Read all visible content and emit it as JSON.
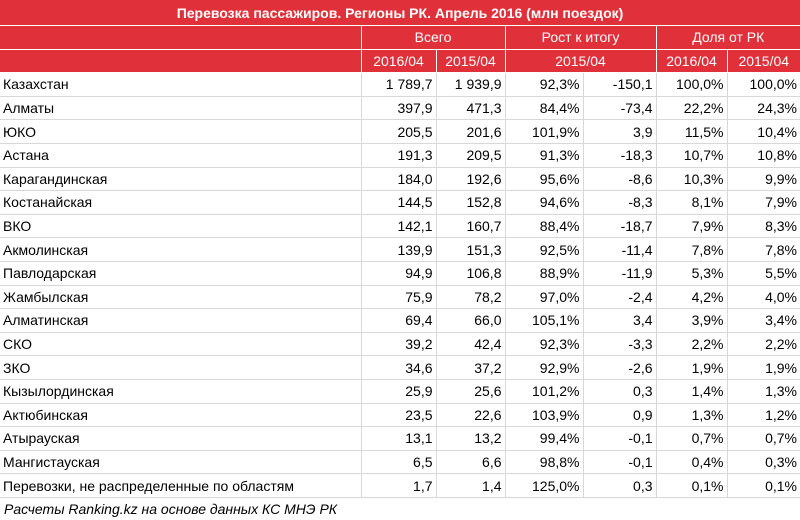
{
  "title": "Перевозка пассажиров. Регионы РК. Апрель 2016 (млн поездок)",
  "header": {
    "group_total": "Всего",
    "group_growth": "Рост к итогу",
    "group_share": "Доля от РК",
    "total_2016": "2016/04",
    "total_2015": "2015/04",
    "growth_period": "2015/04",
    "share_2016": "2016/04",
    "share_2015": "2015/04"
  },
  "rows": [
    {
      "region": "Казахстан",
      "v2016": "1 789,7",
      "v2015": "1 939,9",
      "growth_pct": "92,3%",
      "growth_abs": "-150,1",
      "share2016": "100,0%",
      "share2015": "100,0%"
    },
    {
      "region": "Алматы",
      "v2016": "397,9",
      "v2015": "471,3",
      "growth_pct": "84,4%",
      "growth_abs": "-73,4",
      "share2016": "22,2%",
      "share2015": "24,3%"
    },
    {
      "region": "ЮКО",
      "v2016": "205,5",
      "v2015": "201,6",
      "growth_pct": "101,9%",
      "growth_abs": "3,9",
      "share2016": "11,5%",
      "share2015": "10,4%"
    },
    {
      "region": "Астана",
      "v2016": "191,3",
      "v2015": "209,5",
      "growth_pct": "91,3%",
      "growth_abs": "-18,3",
      "share2016": "10,7%",
      "share2015": "10,8%"
    },
    {
      "region": "Карагандинская",
      "v2016": "184,0",
      "v2015": "192,6",
      "growth_pct": "95,6%",
      "growth_abs": "-8,6",
      "share2016": "10,3%",
      "share2015": "9,9%"
    },
    {
      "region": "Костанайская",
      "v2016": "144,5",
      "v2015": "152,8",
      "growth_pct": "94,6%",
      "growth_abs": "-8,3",
      "share2016": "8,1%",
      "share2015": "7,9%"
    },
    {
      "region": "ВКО",
      "v2016": "142,1",
      "v2015": "160,7",
      "growth_pct": "88,4%",
      "growth_abs": "-18,7",
      "share2016": "7,9%",
      "share2015": "8,3%"
    },
    {
      "region": "Акмолинская",
      "v2016": "139,9",
      "v2015": "151,3",
      "growth_pct": "92,5%",
      "growth_abs": "-11,4",
      "share2016": "7,8%",
      "share2015": "7,8%"
    },
    {
      "region": "Павлодарская",
      "v2016": "94,9",
      "v2015": "106,8",
      "growth_pct": "88,9%",
      "growth_abs": "-11,9",
      "share2016": "5,3%",
      "share2015": "5,5%"
    },
    {
      "region": "Жамбылская",
      "v2016": "75,9",
      "v2015": "78,2",
      "growth_pct": "97,0%",
      "growth_abs": "-2,4",
      "share2016": "4,2%",
      "share2015": "4,0%"
    },
    {
      "region": "Алматинская",
      "v2016": "69,4",
      "v2015": "66,0",
      "growth_pct": "105,1%",
      "growth_abs": "3,4",
      "share2016": "3,9%",
      "share2015": "3,4%"
    },
    {
      "region": "СКО",
      "v2016": "39,2",
      "v2015": "42,4",
      "growth_pct": "92,3%",
      "growth_abs": "-3,3",
      "share2016": "2,2%",
      "share2015": "2,2%"
    },
    {
      "region": "ЗКО",
      "v2016": "34,6",
      "v2015": "37,2",
      "growth_pct": "92,9%",
      "growth_abs": "-2,6",
      "share2016": "1,9%",
      "share2015": "1,9%"
    },
    {
      "region": "Кызылординская",
      "v2016": "25,9",
      "v2015": "25,6",
      "growth_pct": "101,2%",
      "growth_abs": "0,3",
      "share2016": "1,4%",
      "share2015": "1,3%"
    },
    {
      "region": "Актюбинская",
      "v2016": "23,5",
      "v2015": "22,6",
      "growth_pct": "103,9%",
      "growth_abs": "0,9",
      "share2016": "1,3%",
      "share2015": "1,2%"
    },
    {
      "region": "Атырауская",
      "v2016": "13,1",
      "v2015": "13,2",
      "growth_pct": "99,4%",
      "growth_abs": "-0,1",
      "share2016": "0,7%",
      "share2015": "0,7%"
    },
    {
      "region": "Мангистауская",
      "v2016": "6,5",
      "v2015": "6,6",
      "growth_pct": "98,8%",
      "growth_abs": "-0,1",
      "share2016": "0,4%",
      "share2015": "0,3%"
    },
    {
      "region": "Перевозки, не распределенные по областям",
      "v2016": "1,7",
      "v2015": "1,4",
      "growth_pct": "125,0%",
      "growth_abs": "0,3",
      "share2016": "0,1%",
      "share2015": "0,1%"
    }
  ],
  "footer": "Расчеты Ranking.kz на основе данных КС МНЭ РК",
  "colors": {
    "header_bg": "#e0303a",
    "header_text": "#ffffff",
    "grid": "#d8d8d8"
  }
}
